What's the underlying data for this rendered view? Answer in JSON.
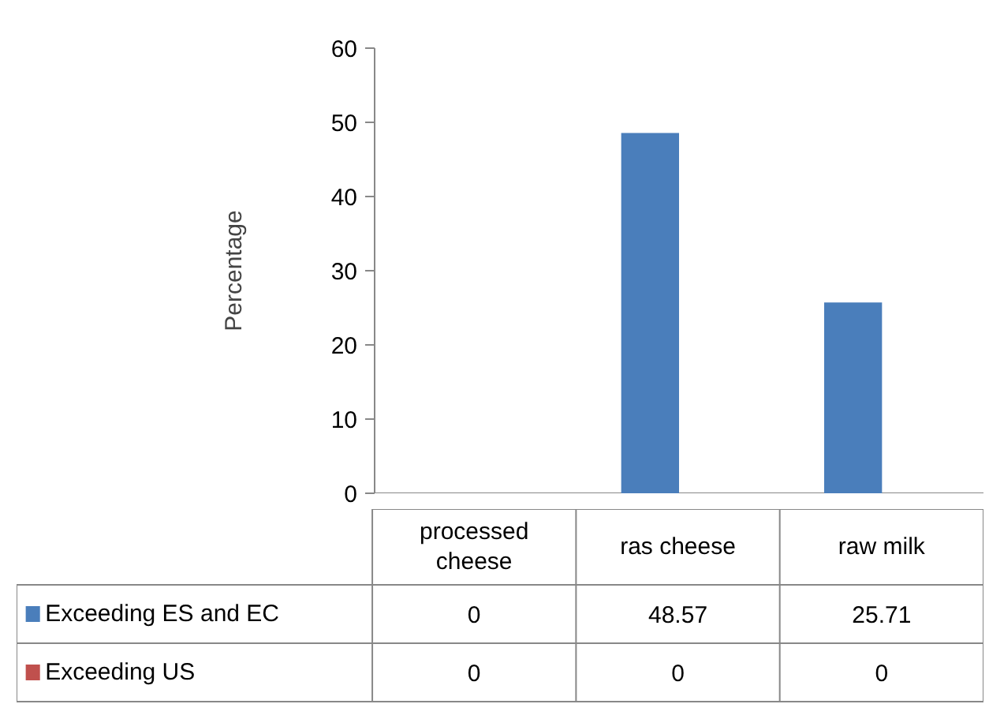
{
  "chart_data": {
    "type": "bar",
    "ylabel": "Percentage",
    "categories": [
      "processed cheese",
      "ras cheese",
      "raw milk"
    ],
    "series": [
      {
        "name": "Exceeding ES and EC",
        "color": "#4a7ebb",
        "values": [
          0,
          48.57,
          25.71
        ]
      },
      {
        "name": "Exceeding US",
        "color": "#c0504d",
        "values": [
          0,
          0,
          0
        ]
      }
    ],
    "ylim": [
      0,
      60
    ],
    "yticks": [
      0,
      10,
      20,
      30,
      40,
      50,
      60
    ],
    "grid": false,
    "legend": "bottom",
    "data_labels": true
  }
}
